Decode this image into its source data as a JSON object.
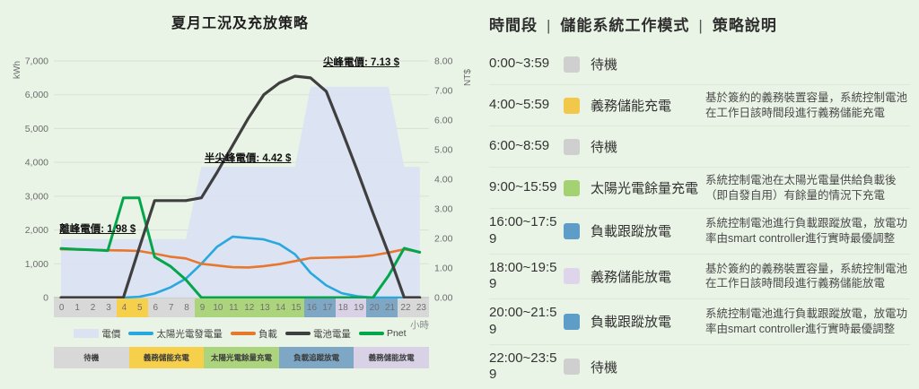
{
  "chart": {
    "title": "夏月工況及充放策略",
    "x_axis": {
      "unit_label": "小時",
      "hours": [
        "0",
        "1",
        "2",
        "3",
        "4",
        "5",
        "6",
        "7",
        "8",
        "9",
        "10",
        "11",
        "12",
        "13",
        "14",
        "15",
        "16",
        "17",
        "18",
        "19",
        "20",
        "21",
        "22",
        "23"
      ]
    },
    "y_left": {
      "unit_label": "kWh",
      "tick_labels": [
        "0",
        "1,000",
        "2,000",
        "3,000",
        "4,000",
        "5,000",
        "6,000",
        "7,000"
      ]
    },
    "y_right": {
      "unit_label": "NT$",
      "tick_labels": [
        "0.00",
        "1.00",
        "2.00",
        "3.00",
        "4.00",
        "5.00",
        "6.00",
        "7.00",
        "8.00"
      ]
    },
    "hour_band_colors": {
      "standby": "#d8d8d8",
      "charge_mandatory": "#f6cf4b",
      "charge_solar": "#abd47d",
      "discharge_tracking": "#7ea7c5",
      "discharge_mandatory": "#d9d2e7"
    },
    "hour_band": [
      "standby",
      "standby",
      "standby",
      "standby",
      "charge_mandatory",
      "charge_mandatory",
      "standby",
      "standby",
      "standby",
      "charge_solar",
      "charge_solar",
      "charge_solar",
      "charge_solar",
      "charge_solar",
      "charge_solar",
      "charge_solar",
      "discharge_tracking",
      "discharge_tracking",
      "discharge_mandatory",
      "discharge_mandatory",
      "discharge_tracking",
      "discharge_tracking",
      "standby",
      "standby"
    ]
  },
  "chart_data": {
    "type": "line",
    "title": "夏月工況及充放策略",
    "x": [
      0,
      1,
      2,
      3,
      4,
      5,
      6,
      7,
      8,
      9,
      10,
      11,
      12,
      13,
      14,
      15,
      16,
      17,
      18,
      19,
      20,
      21,
      22,
      23
    ],
    "x_label": "小時",
    "y_left": {
      "label": "kWh",
      "range": [
        0,
        7000
      ]
    },
    "y_right": {
      "label": "NT$",
      "range": [
        0,
        8
      ]
    },
    "grid": true,
    "legend_position": "bottom",
    "series": [
      {
        "name": "電價",
        "kind": "area",
        "axis": "right",
        "color": "#dbe2f2",
        "values": [
          1.98,
          1.98,
          1.98,
          1.98,
          1.98,
          1.98,
          1.98,
          1.98,
          1.98,
          4.42,
          4.42,
          4.42,
          4.42,
          4.42,
          4.42,
          4.42,
          7.13,
          7.13,
          7.13,
          7.13,
          7.13,
          7.13,
          4.42,
          4.42
        ]
      },
      {
        "name": "太陽光電發電量",
        "kind": "line",
        "axis": "left",
        "color": "#29a8e0",
        "values": [
          0,
          0,
          0,
          0,
          0,
          20,
          120,
          300,
          560,
          1000,
          1500,
          1800,
          1760,
          1720,
          1580,
          1280,
          730,
          360,
          130,
          40,
          0,
          0,
          0,
          0
        ]
      },
      {
        "name": "負載",
        "kind": "line",
        "axis": "left",
        "color": "#e8772e",
        "values": [
          1430,
          1420,
          1410,
          1400,
          1395,
          1380,
          1300,
          1210,
          1160,
          1000,
          950,
          900,
          890,
          930,
          990,
          1080,
          1170,
          1180,
          1190,
          1210,
          1250,
          1330,
          1430,
          1350
        ]
      },
      {
        "name": "電池電量",
        "kind": "line",
        "axis": "left",
        "color": "#3f3f3f",
        "values": [
          0,
          0,
          0,
          0,
          0,
          1450,
          2870,
          2870,
          2870,
          2950,
          3700,
          4500,
          5300,
          6000,
          6350,
          6550,
          6500,
          6100,
          4950,
          3750,
          2500,
          1300,
          0,
          0
        ]
      },
      {
        "name": "Pnet",
        "kind": "line",
        "axis": "left",
        "color": "#04a64b",
        "values": [
          1450,
          1430,
          1410,
          1390,
          2950,
          2950,
          1200,
          930,
          530,
          0,
          0,
          0,
          0,
          0,
          0,
          0,
          0,
          0,
          0,
          0,
          0,
          650,
          1460,
          1340
        ]
      }
    ],
    "annotations": [
      {
        "text": "離峰電價: 1.98 $",
        "hour": -0.1,
        "kwh": 1950
      },
      {
        "text": "半尖峰電價: 4.42 $",
        "hour": 9.2,
        "kwh": 4050
      },
      {
        "text": "尖峰電價: 7.13 $",
        "hour": 16.8,
        "kwh": 6900
      }
    ]
  },
  "legend": [
    {
      "label": "電價",
      "kind": "area",
      "color": "#dbe2f2"
    },
    {
      "label": "太陽光電發電量",
      "kind": "line",
      "color": "#29a8e0"
    },
    {
      "label": "負載",
      "kind": "line",
      "color": "#e8772e"
    },
    {
      "label": "電池電量",
      "kind": "line",
      "color": "#3f3f3f"
    },
    {
      "label": "Pnet",
      "kind": "line",
      "color": "#04a64b"
    }
  ],
  "strategy_band": [
    {
      "label": "待機",
      "color": "#d8d8d8"
    },
    {
      "label": "義務儲能充電",
      "color": "#f6cf4b"
    },
    {
      "label": "太陽光電餘量充電",
      "color": "#abd47d"
    },
    {
      "label": "負載追蹤放電",
      "color": "#7ea7c5"
    },
    {
      "label": "義務儲能放電",
      "color": "#d9d2e7"
    }
  ],
  "table": {
    "header": {
      "col_time": "時間段",
      "col_mode": "儲能系統工作模式",
      "col_desc": "策略說明",
      "separator": "|"
    },
    "rows": [
      {
        "time": "0:00~3:59",
        "mode": "待機",
        "color": "#cfcfcf",
        "desc": ""
      },
      {
        "time": "4:00~5:59",
        "mode": "義務儲能充電",
        "color": "#f2c84b",
        "desc": "基於簽約的義務裝置容量，系統控制電池在工作日該時間段進行義務儲能充電"
      },
      {
        "time": "6:00~8:59",
        "mode": "待機",
        "color": "#cfcfcf",
        "desc": ""
      },
      {
        "time": "9:00~15:59",
        "mode": "太陽光電餘量充電",
        "color": "#a4d172",
        "desc": "系統控制電池在太陽光電量供給負載後（即自發自用）有餘量的情況下充電"
      },
      {
        "time": "16:00~17:59",
        "mode": "負載跟蹤放電",
        "color": "#5e9dc8",
        "desc": "系統控制電池進行負載跟蹤放電，放電功率由smart controller進行實時最優調整"
      },
      {
        "time": "18:00~19:59",
        "mode": "義務儲能放電",
        "color": "#ded4eb",
        "desc": "基於簽約的義務裝置容量，系統控制電池在工作日該時間段進行義務儲能放電"
      },
      {
        "time": "20:00~21:59",
        "mode": "負載跟蹤放電",
        "color": "#5e9dc8",
        "desc": "系統控制電池進行負載跟蹤放電，放電功率由smart controller進行實時最優調整"
      },
      {
        "time": "22:00~23:59",
        "mode": "待機",
        "color": "#cfcfcf",
        "desc": ""
      }
    ]
  }
}
